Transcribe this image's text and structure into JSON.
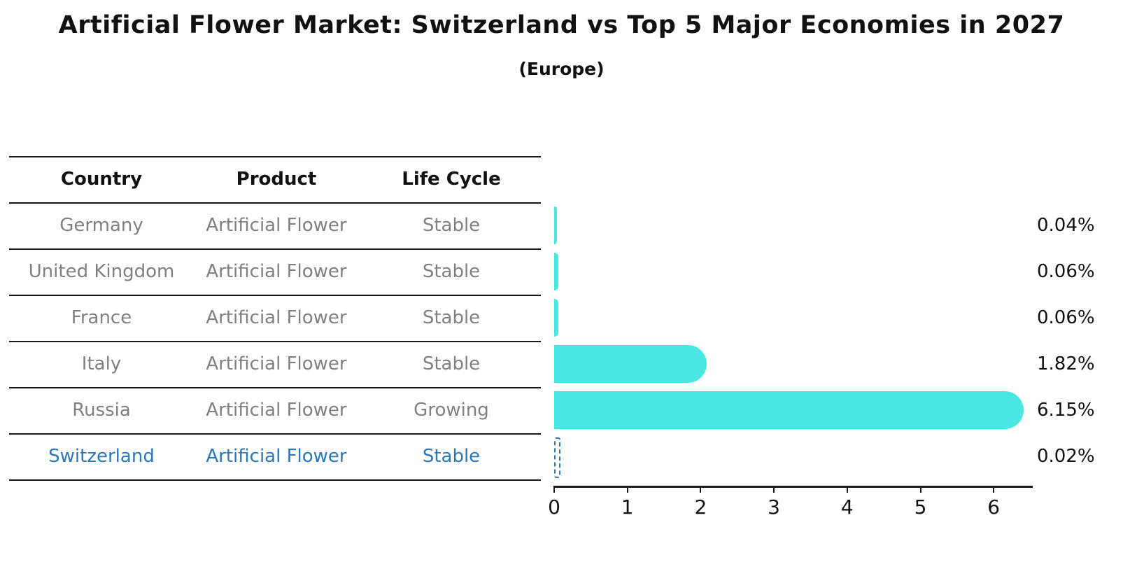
{
  "title": "Artificial Flower Market: Switzerland vs Top 5 Major Economies in 2027",
  "subtitle": "(Europe)",
  "table": {
    "columns": [
      "Country",
      "Product",
      "Life Cycle"
    ],
    "rows": [
      {
        "country": "Germany",
        "product": "Artificial Flower",
        "life_cycle": "Stable",
        "highlight": false
      },
      {
        "country": "United Kingdom",
        "product": "Artificial Flower",
        "life_cycle": "Stable",
        "highlight": false
      },
      {
        "country": "France",
        "product": "Artificial Flower",
        "life_cycle": "Stable",
        "highlight": false
      },
      {
        "country": "Italy",
        "product": "Artificial Flower",
        "life_cycle": "Stable",
        "highlight": false
      },
      {
        "country": "Russia",
        "product": "Artificial Flower",
        "life_cycle": "Growing",
        "highlight": false
      },
      {
        "country": "Switzerland",
        "product": "Artificial Flower",
        "life_cycle": "Stable",
        "highlight": true
      }
    ]
  },
  "chart_data": {
    "type": "bar",
    "orientation": "horizontal",
    "title": "Artificial Flower Market: Switzerland vs Top 5 Major Economies in 2027 (Europe)",
    "categories": [
      "Germany",
      "United Kingdom",
      "France",
      "Italy",
      "Russia",
      "Switzerland"
    ],
    "values": [
      0.04,
      0.06,
      0.06,
      1.82,
      6.15,
      0.02
    ],
    "value_labels": [
      "0.04%",
      "0.06%",
      "0.06%",
      "1.82%",
      "6.15%",
      "0.02%"
    ],
    "x_ticks": [
      "0",
      "1",
      "2",
      "3",
      "4",
      "5",
      "6"
    ],
    "xlim": [
      0,
      6.5
    ],
    "grid": false,
    "legend": "none",
    "highlight_index": 5,
    "highlight_category": "Switzerland"
  },
  "colors": {
    "bar": "#4AE6E2",
    "highlight": "#2878BE",
    "row_text": "#808080",
    "heading_text": "#111111"
  }
}
